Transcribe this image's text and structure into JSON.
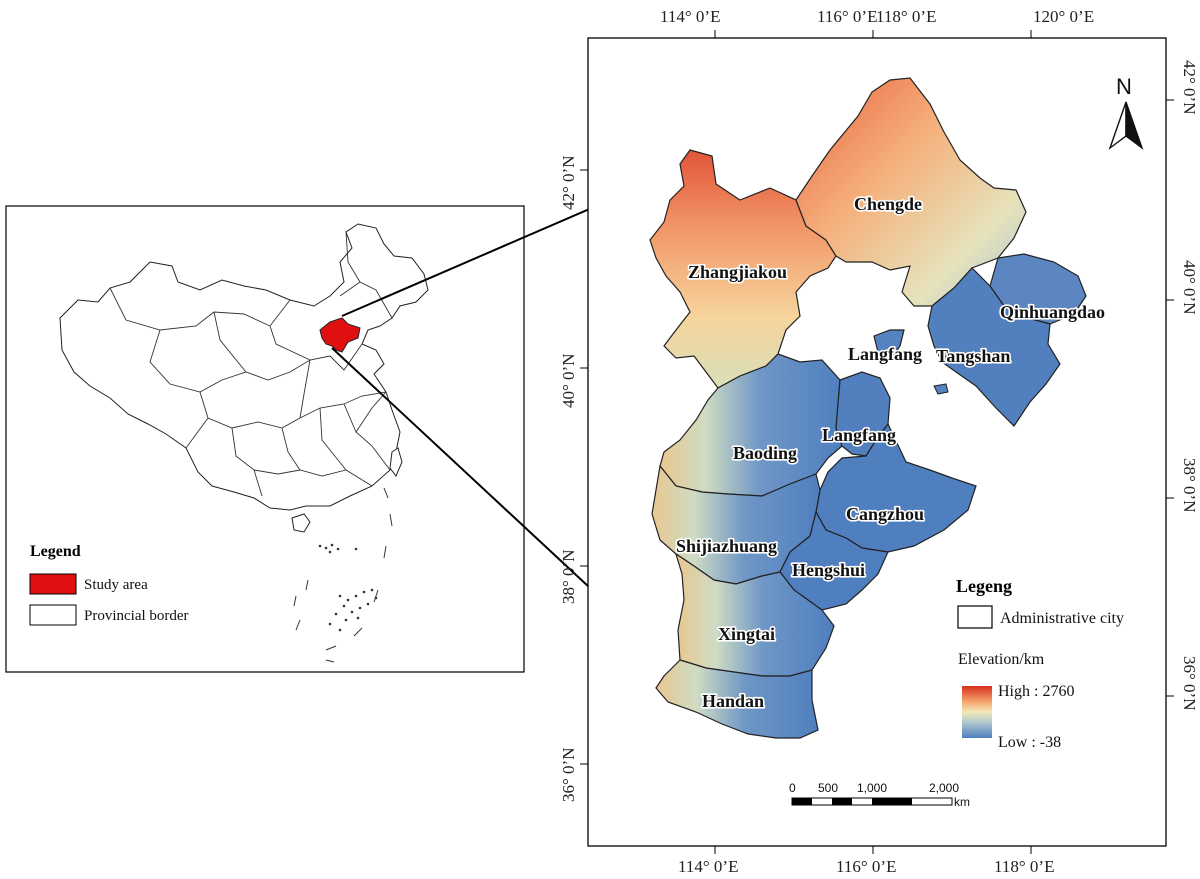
{
  "map": {
    "top_lon_labels": [
      "114° 0’E",
      "116° 0’E",
      "118° 0’E",
      "120° 0’E"
    ],
    "bottom_lon_labels": [
      "114° 0’E",
      "116° 0’E",
      "118° 0’E"
    ],
    "left_lat_labels": [
      "42° 0’N",
      "40° 0’N",
      "38° 0’N",
      "36° 0’N"
    ],
    "right_lat_labels": [
      "42° 0’N",
      "40° 0’N",
      "38° 0’N",
      "36° 0’N"
    ],
    "cities": {
      "chengde": "Chengde",
      "zhangjiakou": "Zhangjiakou",
      "qinhuangdao": "Qinhuangdao",
      "langfang_north": "Langfang",
      "tangshan": "Tangshan",
      "baoding": "Baoding",
      "langfang_south": "Langfang",
      "cangzhou": "Cangzhou",
      "shijiazhuang": "Shijiazhuang",
      "hengshui": "Hengshui",
      "xingtai": "Xingtai",
      "handan": "Handan"
    },
    "north_label": "N",
    "scale_bar": {
      "ticks": [
        "0",
        "500",
        "1,000",
        "2,000"
      ],
      "unit": "km"
    },
    "legend": {
      "title": "Legeng",
      "admin_label": "Administrative city",
      "elevation_title": "Elevation/km",
      "high_label": "High : 2760",
      "low_label": "Low : -38",
      "ramp_colors": [
        "#d7301f",
        "#f4a46b",
        "#f3e9b8",
        "#a9c3cf",
        "#4f7fbf"
      ]
    }
  },
  "inset": {
    "legend_title": "Legend",
    "study_area_label": "Study area",
    "provincial_border_label": "Provincial border",
    "study_area_color": "#e01010"
  }
}
